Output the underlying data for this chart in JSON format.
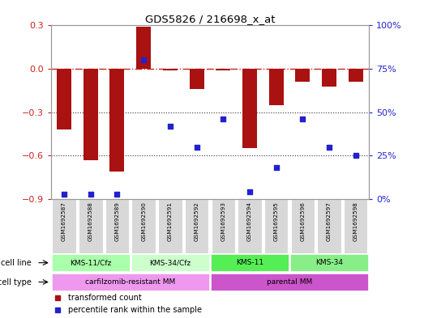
{
  "title": "GDS5826 / 216698_x_at",
  "samples": [
    "GSM1692587",
    "GSM1692588",
    "GSM1692589",
    "GSM1692590",
    "GSM1692591",
    "GSM1692592",
    "GSM1692593",
    "GSM1692594",
    "GSM1692595",
    "GSM1692596",
    "GSM1692597",
    "GSM1692598"
  ],
  "transformed_count": [
    -0.42,
    -0.63,
    -0.71,
    0.29,
    -0.01,
    -0.14,
    -0.01,
    -0.55,
    -0.25,
    -0.09,
    -0.12,
    -0.09
  ],
  "percentile_rank": [
    3,
    3,
    3,
    80,
    42,
    30,
    46,
    4,
    18,
    46,
    30,
    25
  ],
  "cell_line_groups": [
    {
      "label": "KMS-11/Cfz",
      "start": 0,
      "end": 3,
      "color": "#aaffaa"
    },
    {
      "label": "KMS-34/Cfz",
      "start": 3,
      "end": 6,
      "color": "#ccffcc"
    },
    {
      "label": "KMS-11",
      "start": 6,
      "end": 9,
      "color": "#55ee55"
    },
    {
      "label": "KMS-34",
      "start": 9,
      "end": 12,
      "color": "#88ee88"
    }
  ],
  "cell_type_groups": [
    {
      "label": "carfilzomib-resistant MM",
      "start": 0,
      "end": 6,
      "color": "#ee99ee"
    },
    {
      "label": "parental MM",
      "start": 6,
      "end": 12,
      "color": "#cc55cc"
    }
  ],
  "ylim_left": [
    -0.9,
    0.3
  ],
  "ylim_right": [
    0,
    100
  ],
  "bar_color": "#aa1111",
  "scatter_color": "#2222cc",
  "zero_line_color": "#cc2222",
  "dotted_line_color": "#333333",
  "bg_color": "#ffffff",
  "legend_items": [
    {
      "label": "transformed count",
      "color": "#aa1111"
    },
    {
      "label": "percentile rank within the sample",
      "color": "#2222cc"
    }
  ],
  "right_ytick_labels": [
    "0%",
    "25%",
    "50%",
    "75%",
    "100%"
  ],
  "right_yticks": [
    0,
    25,
    50,
    75,
    100
  ]
}
